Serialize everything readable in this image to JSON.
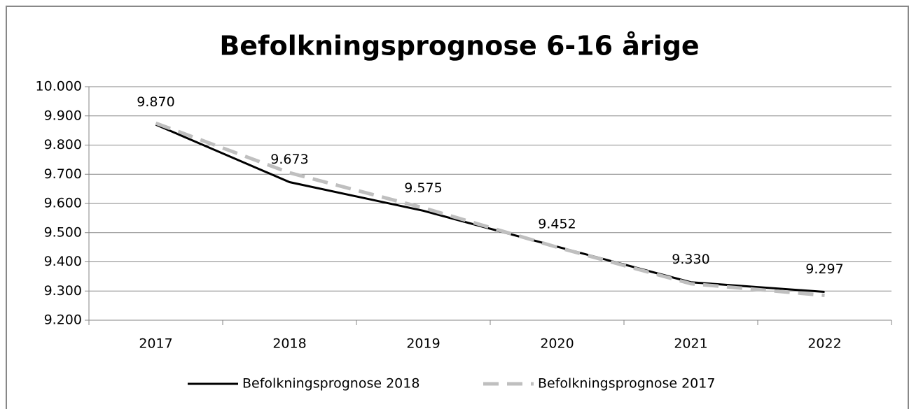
{
  "chart_data": {
    "type": "line",
    "title": "Befolkningsprognose 6-16 årige",
    "categories": [
      "2017",
      "2018",
      "2019",
      "2020",
      "2021",
      "2022"
    ],
    "series": [
      {
        "name": "Befolkningsprognose 2018",
        "color": "#000000",
        "values": [
          9870,
          9673,
          9575,
          9452,
          9330,
          9297
        ],
        "value_labels": [
          "9.870",
          "9.673",
          "9.575",
          "9.452",
          "9.330",
          "9.297"
        ]
      },
      {
        "name": "Befolkningsprognose 2017",
        "color": "#bfbfbf",
        "dashed": true,
        "values": [
          9875,
          9705,
          9585,
          9450,
          9325,
          9285
        ]
      }
    ],
    "ylim": [
      9200,
      10000
    ],
    "yticks": [
      {
        "value": 9200,
        "label": "9.200"
      },
      {
        "value": 9300,
        "label": "9.300"
      },
      {
        "value": 9400,
        "label": "9.400"
      },
      {
        "value": 9500,
        "label": "9.500"
      },
      {
        "value": 9600,
        "label": "9.600"
      },
      {
        "value": 9700,
        "label": "9.700"
      },
      {
        "value": 9800,
        "label": "9.800"
      },
      {
        "value": 9900,
        "label": "9.900"
      },
      {
        "value": 10000,
        "label": "10.000"
      }
    ],
    "grid": true,
    "legend": "bottom"
  }
}
